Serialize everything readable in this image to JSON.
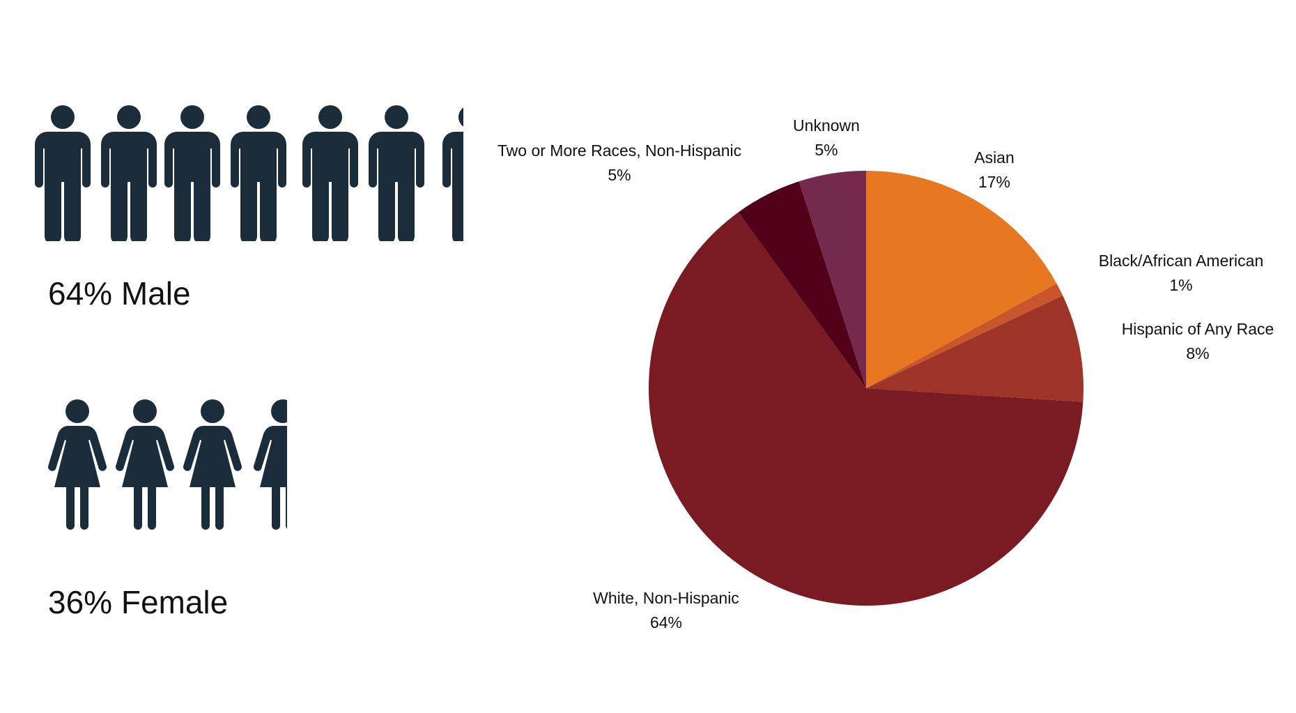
{
  "gender": {
    "male": {
      "label": "64% Male",
      "percent": 64,
      "icon": "man-icon",
      "icons_shown": 6.5
    },
    "female": {
      "label": "36% Female",
      "percent": 36,
      "icon": "woman-icon",
      "icons_shown": 3.5
    },
    "icon_color": "#1B2D3B"
  },
  "chart_data": {
    "type": "pie",
    "start_angle": "12 o'clock",
    "direction": "clockwise",
    "slices": [
      {
        "name": "Asian",
        "value": 17,
        "label": "17%",
        "color": "#E87722"
      },
      {
        "name": "Black/African American",
        "value": 1,
        "label": "1%",
        "color": "#C8552B"
      },
      {
        "name": "Hispanic of Any Race",
        "value": 8,
        "label": "8%",
        "color": "#9E3328"
      },
      {
        "name": "White, Non-Hispanic",
        "value": 64,
        "label": "64%",
        "color": "#7A1A22"
      },
      {
        "name": "Two or More Races, Non-Hispanic",
        "value": 5,
        "label": "5%",
        "color": "#52001A"
      },
      {
        "name": "Unknown",
        "value": 5,
        "label": "5%",
        "color": "#75294D"
      }
    ]
  }
}
